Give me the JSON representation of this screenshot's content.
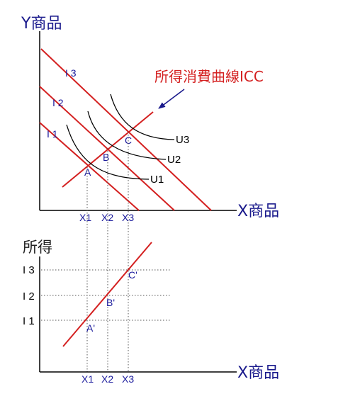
{
  "top_panel": {
    "y_axis_label": "Y商品",
    "x_axis_label": "X商品",
    "income_labels": [
      "I 1",
      "I 2",
      "I 3"
    ],
    "utility_labels": [
      "U1",
      "U2",
      "U3"
    ],
    "point_labels": [
      "A",
      "B",
      "C"
    ],
    "x_tick_labels": [
      "X1",
      "X2",
      "X3"
    ],
    "icc_label": "所得消費曲線ICC"
  },
  "bottom_panel": {
    "y_axis_label": "所得",
    "x_axis_label": "X商品",
    "income_labels": [
      "I 1",
      "I 2",
      "I 3"
    ],
    "point_labels": [
      "A'",
      "B'",
      "C'"
    ],
    "x_tick_labels": [
      "X1",
      "X2",
      "X3"
    ]
  },
  "colors": {
    "budget_line": "#d42020",
    "label_blue": "#1a1a9c",
    "icc_label": "#d42020"
  }
}
